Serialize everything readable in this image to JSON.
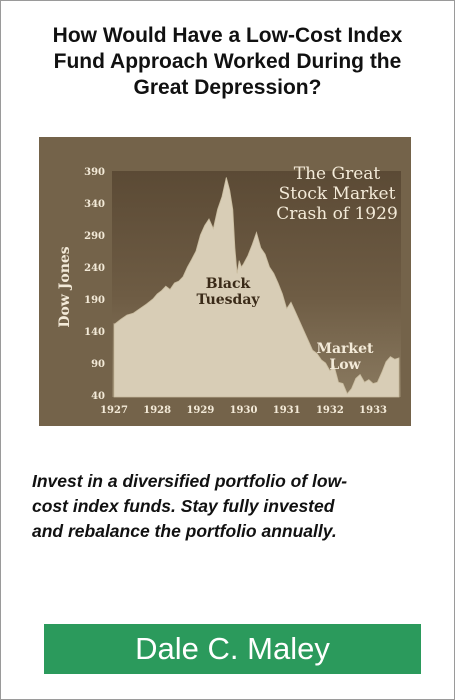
{
  "title": {
    "lines": [
      "How Would Have a Low-Cost Index",
      "Fund Approach Worked During the",
      "Great Depression?"
    ]
  },
  "chart_data": {
    "type": "area",
    "title_lines": [
      "The Great",
      "Stock Market",
      "Crash of 1929"
    ],
    "ylabel": "Dow Jones",
    "xlabel": "",
    "ylim": [
      40,
      390
    ],
    "xlim": [
      1927,
      1933.6
    ],
    "yticks": [
      390,
      340,
      290,
      240,
      190,
      140,
      90,
      40
    ],
    "xticks": [
      1927,
      1928,
      1929,
      1930,
      1931,
      1932,
      1933
    ],
    "x": [
      1926.95,
      1927.0,
      1927.15,
      1927.3,
      1927.45,
      1927.6,
      1927.75,
      1927.9,
      1928.0,
      1928.1,
      1928.2,
      1928.3,
      1928.4,
      1928.5,
      1928.6,
      1928.7,
      1928.8,
      1928.9,
      1929.0,
      1929.1,
      1929.2,
      1929.3,
      1929.4,
      1929.5,
      1929.6,
      1929.68,
      1929.75,
      1929.8,
      1929.85,
      1929.9,
      1929.95,
      1930.0,
      1930.1,
      1930.2,
      1930.3,
      1930.4,
      1930.5,
      1930.6,
      1930.7,
      1930.8,
      1930.9,
      1931.0,
      1931.1,
      1931.2,
      1931.3,
      1931.4,
      1931.5,
      1931.6,
      1931.7,
      1931.8,
      1931.9,
      1932.0,
      1932.1,
      1932.2,
      1932.3,
      1932.4,
      1932.5,
      1932.6,
      1932.7,
      1932.8,
      1932.9,
      1933.0,
      1933.1,
      1933.2,
      1933.3,
      1933.4,
      1933.5,
      1933.6
    ],
    "values": [
      152,
      150,
      158,
      165,
      168,
      175,
      182,
      190,
      198,
      203,
      210,
      205,
      215,
      218,
      225,
      240,
      252,
      265,
      290,
      305,
      315,
      300,
      330,
      350,
      380,
      360,
      330,
      270,
      230,
      250,
      240,
      245,
      258,
      275,
      294,
      270,
      260,
      240,
      230,
      215,
      198,
      175,
      185,
      170,
      155,
      140,
      125,
      110,
      105,
      95,
      90,
      78,
      85,
      60,
      58,
      42,
      50,
      66,
      72,
      60,
      64,
      58,
      60,
      75,
      92,
      100,
      96,
      98
    ],
    "annotations": [
      {
        "text_lines": [
          "Black",
          "Tuesday"
        ]
      },
      {
        "text_lines": [
          "Market",
          "Low"
        ]
      }
    ],
    "colors": {
      "background": "#74634a",
      "plot_background": "#5e4d38",
      "fill": "#d8cdb6",
      "text": "#f3ead8",
      "annotation_text": "#3a2a18"
    }
  },
  "tagline": {
    "lines": [
      "Invest in a diversified portfolio of low-",
      "cost index funds. Stay fully invested",
      "and rebalance the portfolio annually."
    ]
  },
  "author": {
    "name": "Dale C. Maley",
    "bar_color": "#2b9a5c"
  }
}
